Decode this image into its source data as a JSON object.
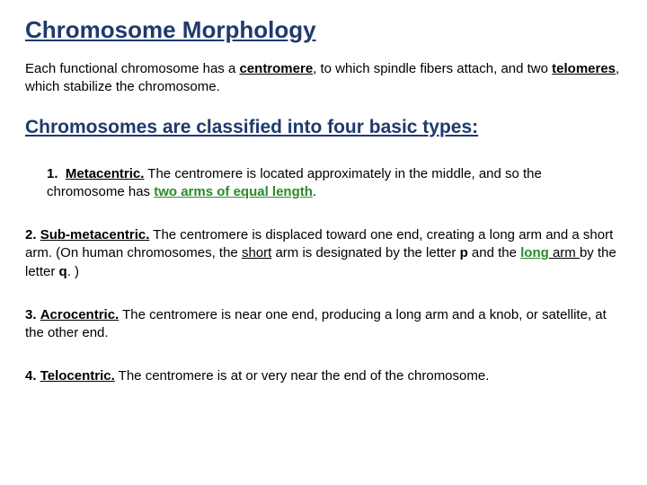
{
  "title": {
    "text": "Chromosome Morphology",
    "color": "#1f3a6d",
    "fontsize": 26
  },
  "intro": {
    "prefix": "Each functional chromosome has a ",
    "kw1": "centromere",
    "mid": ", to which spindle fibers attach, and two ",
    "kw2": "telomeres",
    "suffix": ", which stabilize the chromosome.",
    "fontsize": 15
  },
  "subheading": {
    "text": "Chromosomes are classified into four basic types:",
    "color": "#1f3a6d",
    "fontsize": 21
  },
  "items": [
    {
      "num": "1.",
      "term": "Metacentric.",
      "desc_a": " The centromere is located approximately in the middle, and so the chromosome has ",
      "hl": "two arms of equal length",
      "hl_color": "#2a8a2a",
      "desc_b": "."
    },
    {
      "num": "2.",
      "term": "Sub-metacentric.",
      "desc_a": " The centromere is displaced toward one end, creating a long arm and a short arm. (On human chromosomes, the ",
      "short_u": "short",
      "short_rest": " arm",
      "mid1": " is designated by the letter ",
      "p": "p",
      "mid2": " and the ",
      "long_link": "long",
      "long_link_color": "#2a8a2a",
      "long_rest": " arm ",
      "mid3": "by the letter ",
      "q": "q",
      "tail": ". )"
    },
    {
      "num": "3.",
      "term": "Acrocentric.",
      "desc": " The centromere is near one end, producing a long arm and a knob, or satellite, at the other end."
    },
    {
      "num": "4.",
      "term": "Telocentric.",
      "desc": " The centromere is at or very near the end of the chromosome."
    }
  ]
}
